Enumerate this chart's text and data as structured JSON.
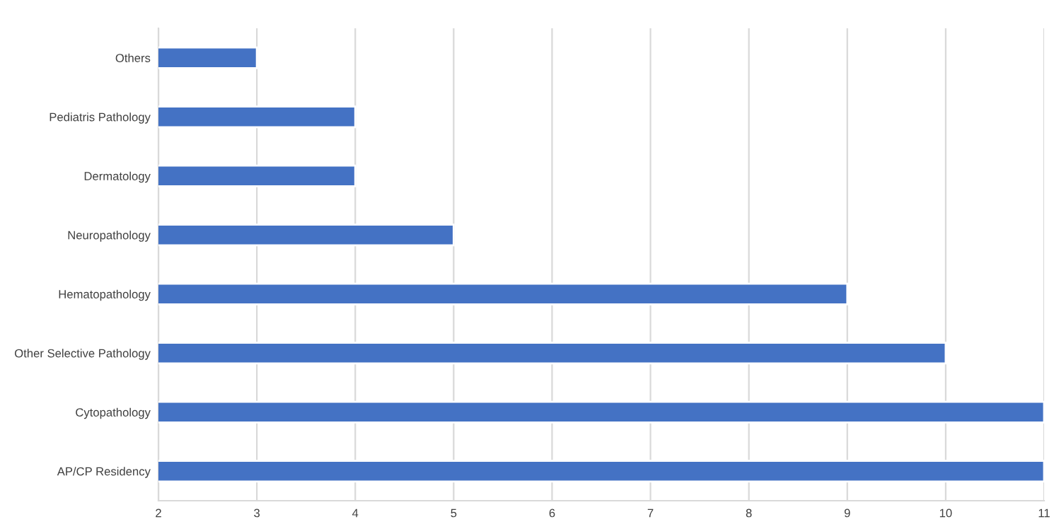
{
  "chart_data": {
    "type": "bar",
    "orientation": "horizontal",
    "categories": [
      "Others",
      "Pediatris Pathology",
      "Dermatology",
      "Neuropathology",
      "Hematopathology",
      "Other Selective Pathology",
      "Cytopathology",
      "AP/CP Residency"
    ],
    "values": [
      3,
      4,
      4,
      5,
      9,
      10,
      11,
      11
    ],
    "color": "#4472c4",
    "xlim": [
      2,
      11
    ],
    "xticks": [
      2,
      3,
      4,
      5,
      6,
      7,
      8,
      9,
      10,
      11
    ],
    "grid": "x",
    "legend": false
  }
}
